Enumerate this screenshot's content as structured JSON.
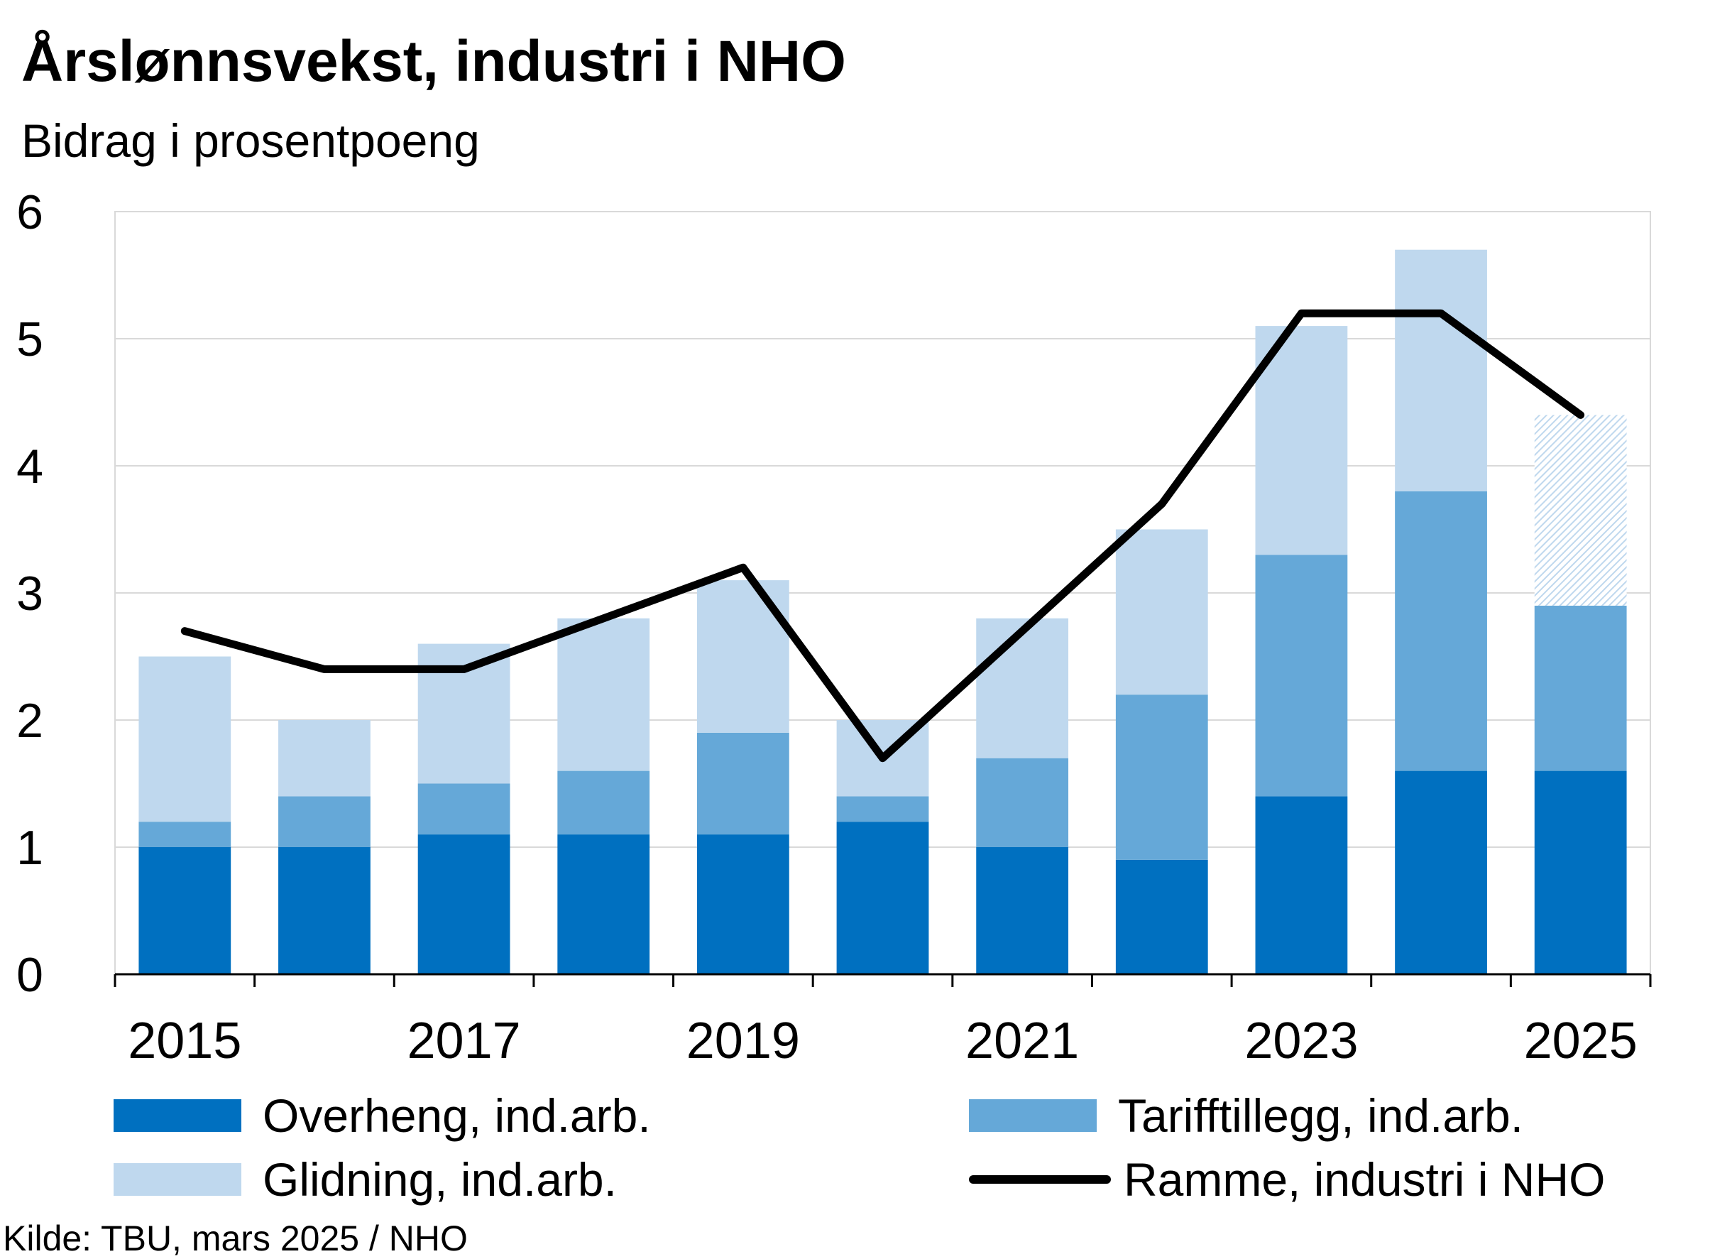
{
  "title": "Årslønnsvekst,  industri i NHO",
  "subtitle": "Bidrag i prosentpoeng",
  "source": "Kilde: TBU, mars 2025 / NHO",
  "colors": {
    "overheng": "#0070c0",
    "tarifftillegg": "#65a8d8",
    "glidning": "#bfd8ee",
    "ramme": "#000000",
    "grid": "#d9d9d9"
  },
  "legend": {
    "overheng": "Overheng, ind.arb.",
    "tarifftillegg": "Tarifftillegg, ind.arb.",
    "glidning": "Glidning, ind.arb.",
    "ramme": "Ramme, industri i NHO"
  },
  "chart_data": {
    "type": "bar",
    "stacked": true,
    "title": "Årslønnsvekst,  industri i NHO",
    "subtitle": "Bidrag i prosentpoeng",
    "categories": [
      "2015",
      "2016",
      "2017",
      "2018",
      "2019",
      "2020",
      "2021",
      "2022",
      "2023",
      "2024",
      "2025"
    ],
    "x_tick_labels": [
      "2015",
      "2017",
      "2019",
      "2021",
      "2023",
      "2025"
    ],
    "y_ticks": [
      "0",
      "1",
      "2",
      "3",
      "4",
      "5",
      "6"
    ],
    "ylim": [
      0,
      6
    ],
    "grid": true,
    "legend_position": "bottom",
    "series": [
      {
        "name": "Overheng, ind.arb.",
        "kind": "bar",
        "values": [
          1.0,
          1.0,
          1.1,
          1.1,
          1.1,
          1.2,
          1.0,
          0.9,
          1.4,
          1.6,
          1.6
        ]
      },
      {
        "name": "Tarifftillegg, ind.arb.",
        "kind": "bar",
        "values": [
          0.2,
          0.4,
          0.4,
          0.5,
          0.8,
          0.2,
          0.7,
          1.3,
          1.9,
          2.2,
          1.3
        ]
      },
      {
        "name": "Glidning, ind.arb.",
        "kind": "bar",
        "values": [
          1.3,
          0.6,
          1.1,
          1.2,
          1.2,
          0.6,
          1.1,
          1.3,
          1.8,
          1.9,
          1.5
        ],
        "hatched_last": true
      },
      {
        "name": "Ramme, industri i NHO",
        "kind": "line",
        "values": [
          2.7,
          2.4,
          2.4,
          2.8,
          3.2,
          1.7,
          2.7,
          3.7,
          5.2,
          5.2,
          4.4
        ]
      }
    ]
  }
}
